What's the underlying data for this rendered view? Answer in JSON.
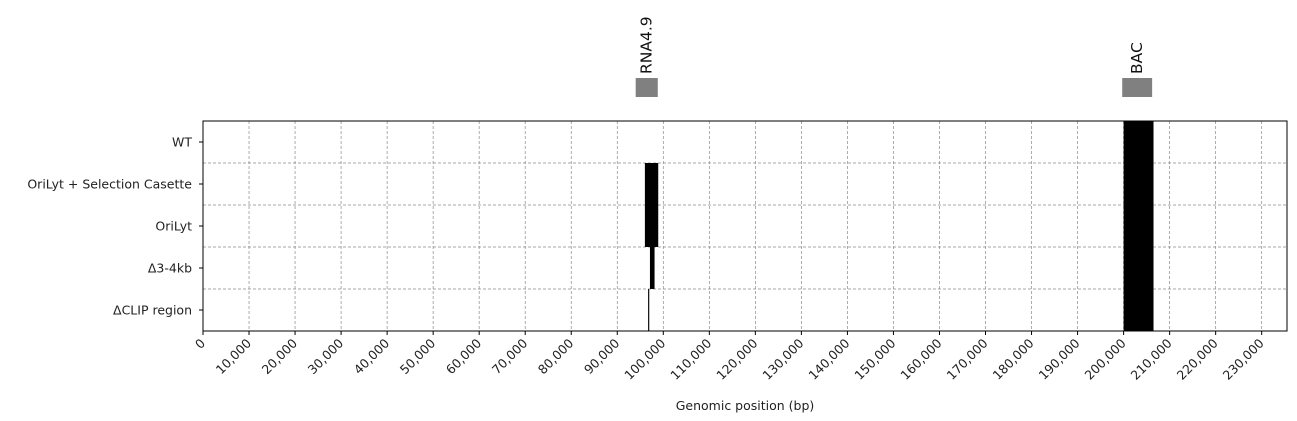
{
  "chart_data": {
    "type": "bar",
    "title": "",
    "xlabel": "Genomic position (bp)",
    "ylabel": "",
    "xlim": [
      0,
      235500
    ],
    "xticks": [
      0,
      10000,
      20000,
      30000,
      40000,
      50000,
      60000,
      70000,
      80000,
      90000,
      100000,
      110000,
      120000,
      130000,
      140000,
      150000,
      160000,
      170000,
      180000,
      190000,
      200000,
      210000,
      220000,
      230000
    ],
    "xtick_labels": [
      "0",
      "10,000",
      "20,000",
      "30,000",
      "40,000",
      "50,000",
      "60,000",
      "70,000",
      "80,000",
      "90,000",
      "100,000",
      "110,000",
      "120,000",
      "130,000",
      "140,000",
      "150,000",
      "160,000",
      "170,000",
      "180,000",
      "190,000",
      "200,000",
      "210,000",
      "220,000",
      "230,000"
    ],
    "grid": true,
    "rows": [
      {
        "label": "WT",
        "segments": [
          {
            "start": 200000,
            "end": 206500,
            "color": "#000000"
          }
        ]
      },
      {
        "label": "OriLyt + Selection Casette",
        "segments": [
          {
            "start": 96000,
            "end": 98900,
            "color": "#000000"
          },
          {
            "start": 200000,
            "end": 206500,
            "color": "#000000"
          }
        ]
      },
      {
        "label": "OriLyt",
        "segments": [
          {
            "start": 96000,
            "end": 98900,
            "color": "#000000"
          },
          {
            "start": 200000,
            "end": 206500,
            "color": "#000000"
          }
        ]
      },
      {
        "label": "Δ3-4kb",
        "segments": [
          {
            "start": 97100,
            "end": 98100,
            "color": "#000000"
          },
          {
            "start": 200000,
            "end": 206500,
            "color": "#000000"
          }
        ]
      },
      {
        "label": "ΔCLIP region",
        "segments": [
          {
            "start": 96700,
            "end": 96950,
            "color": "#000000"
          },
          {
            "start": 200000,
            "end": 206500,
            "color": "#000000"
          }
        ]
      }
    ],
    "annotations": [
      {
        "label": "RNA4.9",
        "start": 94000,
        "end": 98800,
        "color": "#808080"
      },
      {
        "label": "BAC",
        "start": 199700,
        "end": 206200,
        "color": "#808080"
      }
    ]
  }
}
